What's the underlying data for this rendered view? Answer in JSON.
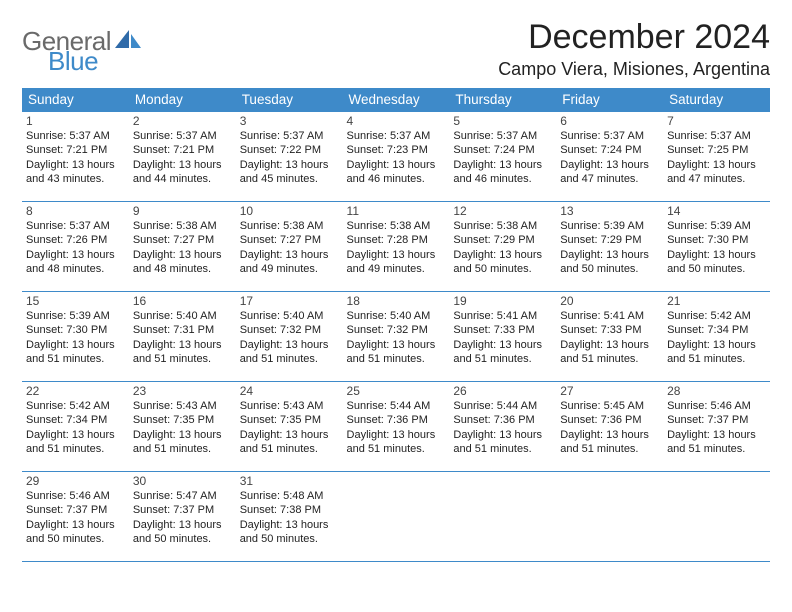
{
  "logo": {
    "word1": "General",
    "word2": "Blue"
  },
  "title": "December 2024",
  "location": "Campo Viera, Misiones, Argentina",
  "colors": {
    "header_bg": "#3e8ac9",
    "header_fg": "#ffffff",
    "cell_border": "#3e8ac9",
    "logo_gray": "#6a6a6a",
    "logo_blue": "#3e8ac9",
    "page_bg": "#ffffff"
  },
  "typography": {
    "title_fontsize": 34,
    "location_fontsize": 18,
    "dow_fontsize": 13.5,
    "daynum_fontsize": 12,
    "info_fontsize": 11,
    "logo_fontsize": 26
  },
  "dow": [
    "Sunday",
    "Monday",
    "Tuesday",
    "Wednesday",
    "Thursday",
    "Friday",
    "Saturday"
  ],
  "weeks": [
    [
      {
        "n": "1",
        "sr": "5:37 AM",
        "ss": "7:21 PM",
        "dl": "13 hours and 43 minutes."
      },
      {
        "n": "2",
        "sr": "5:37 AM",
        "ss": "7:21 PM",
        "dl": "13 hours and 44 minutes."
      },
      {
        "n": "3",
        "sr": "5:37 AM",
        "ss": "7:22 PM",
        "dl": "13 hours and 45 minutes."
      },
      {
        "n": "4",
        "sr": "5:37 AM",
        "ss": "7:23 PM",
        "dl": "13 hours and 46 minutes."
      },
      {
        "n": "5",
        "sr": "5:37 AM",
        "ss": "7:24 PM",
        "dl": "13 hours and 46 minutes."
      },
      {
        "n": "6",
        "sr": "5:37 AM",
        "ss": "7:24 PM",
        "dl": "13 hours and 47 minutes."
      },
      {
        "n": "7",
        "sr": "5:37 AM",
        "ss": "7:25 PM",
        "dl": "13 hours and 47 minutes."
      }
    ],
    [
      {
        "n": "8",
        "sr": "5:37 AM",
        "ss": "7:26 PM",
        "dl": "13 hours and 48 minutes."
      },
      {
        "n": "9",
        "sr": "5:38 AM",
        "ss": "7:27 PM",
        "dl": "13 hours and 48 minutes."
      },
      {
        "n": "10",
        "sr": "5:38 AM",
        "ss": "7:27 PM",
        "dl": "13 hours and 49 minutes."
      },
      {
        "n": "11",
        "sr": "5:38 AM",
        "ss": "7:28 PM",
        "dl": "13 hours and 49 minutes."
      },
      {
        "n": "12",
        "sr": "5:38 AM",
        "ss": "7:29 PM",
        "dl": "13 hours and 50 minutes."
      },
      {
        "n": "13",
        "sr": "5:39 AM",
        "ss": "7:29 PM",
        "dl": "13 hours and 50 minutes."
      },
      {
        "n": "14",
        "sr": "5:39 AM",
        "ss": "7:30 PM",
        "dl": "13 hours and 50 minutes."
      }
    ],
    [
      {
        "n": "15",
        "sr": "5:39 AM",
        "ss": "7:30 PM",
        "dl": "13 hours and 51 minutes."
      },
      {
        "n": "16",
        "sr": "5:40 AM",
        "ss": "7:31 PM",
        "dl": "13 hours and 51 minutes."
      },
      {
        "n": "17",
        "sr": "5:40 AM",
        "ss": "7:32 PM",
        "dl": "13 hours and 51 minutes."
      },
      {
        "n": "18",
        "sr": "5:40 AM",
        "ss": "7:32 PM",
        "dl": "13 hours and 51 minutes."
      },
      {
        "n": "19",
        "sr": "5:41 AM",
        "ss": "7:33 PM",
        "dl": "13 hours and 51 minutes."
      },
      {
        "n": "20",
        "sr": "5:41 AM",
        "ss": "7:33 PM",
        "dl": "13 hours and 51 minutes."
      },
      {
        "n": "21",
        "sr": "5:42 AM",
        "ss": "7:34 PM",
        "dl": "13 hours and 51 minutes."
      }
    ],
    [
      {
        "n": "22",
        "sr": "5:42 AM",
        "ss": "7:34 PM",
        "dl": "13 hours and 51 minutes."
      },
      {
        "n": "23",
        "sr": "5:43 AM",
        "ss": "7:35 PM",
        "dl": "13 hours and 51 minutes."
      },
      {
        "n": "24",
        "sr": "5:43 AM",
        "ss": "7:35 PM",
        "dl": "13 hours and 51 minutes."
      },
      {
        "n": "25",
        "sr": "5:44 AM",
        "ss": "7:36 PM",
        "dl": "13 hours and 51 minutes."
      },
      {
        "n": "26",
        "sr": "5:44 AM",
        "ss": "7:36 PM",
        "dl": "13 hours and 51 minutes."
      },
      {
        "n": "27",
        "sr": "5:45 AM",
        "ss": "7:36 PM",
        "dl": "13 hours and 51 minutes."
      },
      {
        "n": "28",
        "sr": "5:46 AM",
        "ss": "7:37 PM",
        "dl": "13 hours and 51 minutes."
      }
    ],
    [
      {
        "n": "29",
        "sr": "5:46 AM",
        "ss": "7:37 PM",
        "dl": "13 hours and 50 minutes."
      },
      {
        "n": "30",
        "sr": "5:47 AM",
        "ss": "7:37 PM",
        "dl": "13 hours and 50 minutes."
      },
      {
        "n": "31",
        "sr": "5:48 AM",
        "ss": "7:38 PM",
        "dl": "13 hours and 50 minutes."
      },
      null,
      null,
      null,
      null
    ]
  ],
  "labels": {
    "sunrise": "Sunrise:",
    "sunset": "Sunset:",
    "daylight": "Daylight:"
  }
}
